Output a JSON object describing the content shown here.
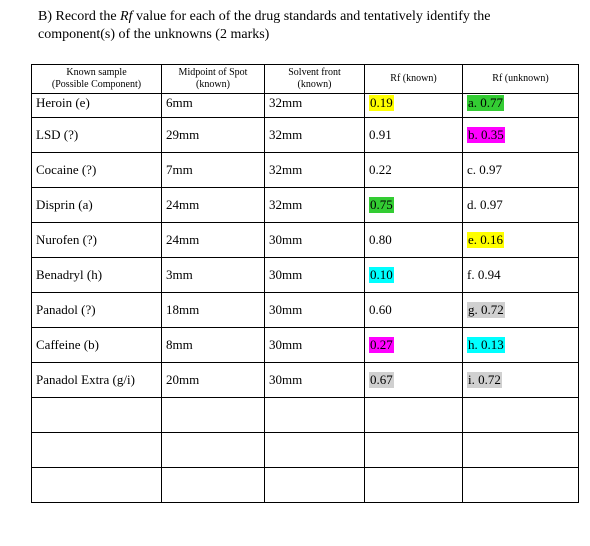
{
  "question": {
    "line1_pre": "B) Record the ",
    "line1_rf": "Rf",
    "line1_post": " value for each of the drug standards and tentatively identify the",
    "line2": "component(s) of the unknowns (2 marks)"
  },
  "table": {
    "headers": {
      "sample_l1": "Known sample",
      "sample_l2": "(Possible Component)",
      "midpoint_l1": "Midpoint of Spot",
      "midpoint_l2": "(known)",
      "solvent_l1": "Solvent front",
      "solvent_l2": "(known)",
      "rf_known": "Rf (known)",
      "rf_unknown": "Rf (unknown)"
    },
    "rows": [
      {
        "sample": "Heroin (e)",
        "midpoint": "6mm",
        "solvent": "32mm",
        "rf_known": "0.19",
        "rf_unknown": "a. 0.77"
      },
      {
        "sample": "LSD (?)",
        "midpoint": "29mm",
        "solvent": "32mm",
        "rf_known": "0.91",
        "rf_unknown": "b. 0.35"
      },
      {
        "sample": "Cocaine (?)",
        "midpoint": "7mm",
        "solvent": "32mm",
        "rf_known": "0.22",
        "rf_unknown": "c. 0.97"
      },
      {
        "sample": "Disprin (a)",
        "midpoint": "24mm",
        "solvent": "32mm",
        "rf_known": "0.75",
        "rf_unknown": "d. 0.97"
      },
      {
        "sample": "Nurofen (?)",
        "midpoint": "24mm",
        "solvent": "30mm",
        "rf_known": "0.80",
        "rf_unknown": "e. 0.16"
      },
      {
        "sample": "Benadryl (h)",
        "midpoint": "3mm",
        "solvent": "30mm",
        "rf_known": "0.10",
        "rf_unknown": "f. 0.94"
      },
      {
        "sample": "Panadol (?)",
        "midpoint": "18mm",
        "solvent": "30mm",
        "rf_known": "0.60",
        "rf_unknown": "g. 0.72"
      },
      {
        "sample": "Caffeine (b)",
        "midpoint": "8mm",
        "solvent": "30mm",
        "rf_known": "0.27",
        "rf_unknown": "h. 0.13"
      },
      {
        "sample": "Panadol Extra (g/i)",
        "midpoint": "20mm",
        "solvent": "30mm",
        "rf_known": "0.67",
        "rf_unknown": "i. 0.72"
      }
    ]
  },
  "highlight_colors": {
    "yellow": "#ffff00",
    "green": "#33cc33",
    "magenta": "#ff00ff",
    "cyan": "#00ffff",
    "gray": "#d0d0d0"
  }
}
